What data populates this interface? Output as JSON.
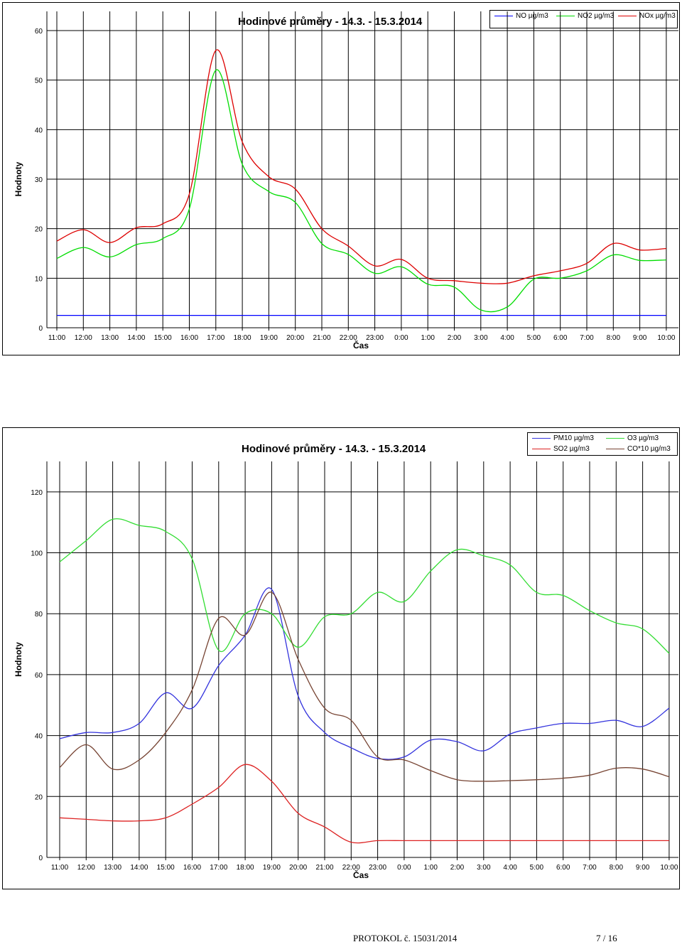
{
  "chart_data": [
    {
      "type": "line",
      "title": "Hodinové průměry -   14.3. - 15.3.2014",
      "xlabel": "Čas",
      "ylabel": "Hodnoty",
      "categories": [
        "11:00",
        "12:00",
        "13:00",
        "14:00",
        "15:00",
        "16:00",
        "17:00",
        "18:00",
        "19:00",
        "20:00",
        "21:00",
        "22:00",
        "23:00",
        "0:00",
        "1:00",
        "2:00",
        "3:00",
        "4:00",
        "5:00",
        "6:00",
        "7:00",
        "8:00",
        "9:00",
        "10:00"
      ],
      "ylim": [
        0,
        60
      ],
      "yticks": [
        0,
        10,
        20,
        30,
        40,
        50,
        60
      ],
      "grid": true,
      "legend_position": "top-right",
      "series": [
        {
          "name": "NO µg/m3",
          "color": "#0000ff",
          "values": [
            2.5,
            2.5,
            2.5,
            2.5,
            2.5,
            2.5,
            2.5,
            2.5,
            2.5,
            2.5,
            2.5,
            2.5,
            2.5,
            2.5,
            2.5,
            2.5,
            2.5,
            2.5,
            2.5,
            2.5,
            2.5,
            2.5,
            2.5,
            2.5
          ]
        },
        {
          "name": "NO2 µg/m3",
          "color": "#00dd00",
          "values": [
            14,
            16.2,
            14.3,
            16.8,
            18,
            24,
            52,
            33,
            27.5,
            25.3,
            17,
            14.8,
            11,
            12.3,
            8.8,
            8.2,
            3.6,
            4.2,
            9.8,
            10,
            11.5,
            14.7,
            13.6,
            13.7
          ]
        },
        {
          "name": "NOx µg/m3",
          "color": "#dd0000",
          "values": [
            17.5,
            19.8,
            17.2,
            20.2,
            21,
            27,
            56,
            37.5,
            30.5,
            28,
            20,
            16.5,
            12.5,
            13.8,
            10,
            9.5,
            9,
            9,
            10.5,
            11.5,
            13,
            17,
            15.7,
            16
          ]
        }
      ]
    },
    {
      "type": "line",
      "title": "Hodinové průměry - 14.3. - 15.3.2014",
      "xlabel": "Čas",
      "ylabel": "Hodnoty",
      "categories": [
        "11:00",
        "12:00",
        "13:00",
        "14:00",
        "15:00",
        "16:00",
        "17:00",
        "18:00",
        "19:00",
        "20:00",
        "21:00",
        "22:00",
        "23:00",
        "0:00",
        "1:00",
        "2:00",
        "3:00",
        "4:00",
        "5:00",
        "6:00",
        "7:00",
        "8:00",
        "9:00",
        "10:00"
      ],
      "ylim": [
        0,
        130
      ],
      "yticks": [
        0,
        20,
        40,
        60,
        80,
        100,
        120
      ],
      "grid": true,
      "legend_position": "top-right",
      "series": [
        {
          "name": "PM10 µg/m3",
          "color": "#3333dd",
          "values": [
            39,
            41,
            41,
            44,
            54,
            49,
            63,
            73,
            88,
            53,
            41,
            36,
            32.5,
            33,
            38.5,
            38,
            35,
            40.5,
            42.5,
            44,
            44,
            45,
            43,
            49
          ]
        },
        {
          "name": "O3 µg/m3",
          "color": "#33dd33",
          "values": [
            97,
            104,
            111,
            109,
            107,
            98,
            68,
            80,
            80,
            69,
            79,
            80,
            87,
            84,
            94,
            101,
            99,
            96,
            87,
            86,
            81,
            77,
            75,
            67
          ]
        },
        {
          "name": "SO2 µg/m3",
          "color": "#dd2222",
          "values": [
            13,
            12.5,
            12,
            12,
            13,
            17.5,
            23,
            30.5,
            25,
            14.5,
            10,
            5,
            5.5,
            5.5,
            5.5,
            5.5,
            5.5,
            5.5,
            5.5,
            5.5,
            5.5,
            5.5,
            5.5,
            5.5
          ]
        },
        {
          "name": "CO*10 µg/m3",
          "color": "#774433",
          "values": [
            29.5,
            37,
            29,
            32,
            41,
            55,
            78.5,
            73,
            87,
            65,
            49,
            45,
            33,
            32,
            28.5,
            25.5,
            25,
            25.2,
            25.5,
            26,
            27,
            29.3,
            29,
            26.5
          ]
        }
      ]
    }
  ],
  "footer": {
    "protocol": "PROTOKOL č. 15031/2014",
    "page": "7 / 16"
  }
}
